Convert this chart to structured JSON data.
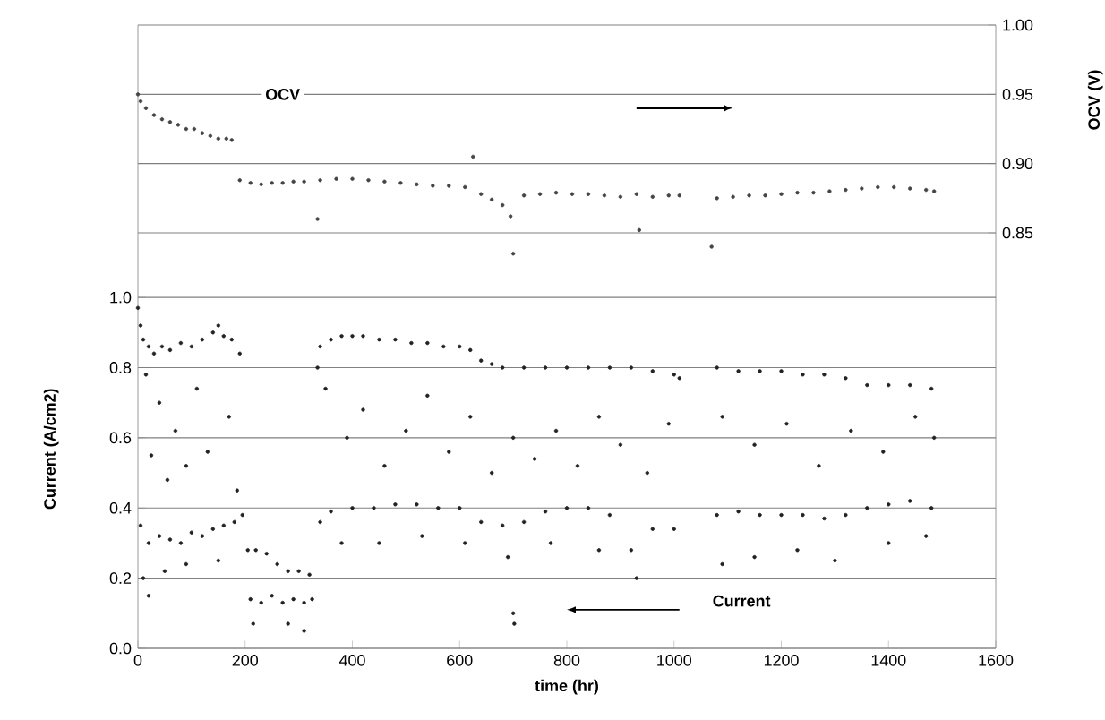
{
  "chart_data": {
    "type": "scatter",
    "xlabel": "time  (hr)",
    "ylabel": "Current (A/cm2)",
    "y2label": "OCV (V)",
    "annotations": [
      "OCV",
      "Current"
    ],
    "xlim": [
      0,
      1600
    ],
    "xticks": [
      0,
      200,
      400,
      600,
      800,
      1000,
      1200,
      1400,
      1600
    ],
    "ylim": [
      0,
      1.776
    ],
    "yticks": [
      {
        "value": 0,
        "label": "0.0"
      },
      {
        "value": 0.2,
        "label": "0.2"
      },
      {
        "value": 0.4,
        "label": "0.4"
      },
      {
        "value": 0.6,
        "label": "0.6"
      },
      {
        "value": 0.8,
        "label": "0.8"
      },
      {
        "value": 1.0,
        "label": "1.0"
      }
    ],
    "y2lim": [
      0.55,
      1.0
    ],
    "y2ticks": [
      {
        "value": 0.85,
        "label": "0.85"
      },
      {
        "value": 0.9,
        "label": "0.90"
      },
      {
        "value": 0.95,
        "label": "0.95"
      },
      {
        "value": 1.0,
        "label": "1.00"
      }
    ],
    "grid": "y",
    "series": [
      {
        "color": "#222222",
        "x": [
          0,
          5,
          10,
          20,
          30,
          45,
          60,
          80,
          100,
          120,
          140,
          150,
          160,
          175,
          190,
          15,
          40,
          70,
          90,
          110,
          130,
          170,
          185,
          25,
          55,
          5,
          20,
          40,
          60,
          80,
          100,
          120,
          140,
          160,
          180,
          195,
          10,
          50,
          90,
          150,
          20,
          205,
          220,
          240,
          260,
          280,
          300,
          320,
          210,
          230,
          250,
          270,
          290,
          310,
          325,
          215,
          280,
          310,
          335,
          340,
          360,
          380,
          400,
          420,
          450,
          480,
          510,
          540,
          570,
          600,
          620,
          640,
          660,
          680,
          350,
          390,
          420,
          460,
          500,
          540,
          580,
          620,
          660,
          700,
          740,
          780,
          820,
          860,
          900,
          950,
          990,
          340,
          360,
          400,
          440,
          480,
          520,
          560,
          600,
          640,
          680,
          700,
          702,
          720,
          760,
          800,
          840,
          880,
          920,
          930,
          960,
          1000,
          380,
          450,
          530,
          610,
          690,
          770,
          860,
          720,
          760,
          800,
          840,
          880,
          920,
          960,
          1000,
          1010,
          1080,
          1120,
          1160,
          1200,
          1240,
          1280,
          1320,
          1360,
          1400,
          1440,
          1480,
          1090,
          1150,
          1210,
          1270,
          1330,
          1390,
          1450,
          1485,
          1080,
          1120,
          1160,
          1200,
          1240,
          1280,
          1320,
          1360,
          1400,
          1440,
          1480,
          1090,
          1150,
          1230,
          1300,
          1400,
          1470
        ],
        "values": [
          0.97,
          0.92,
          0.88,
          0.86,
          0.84,
          0.86,
          0.85,
          0.87,
          0.86,
          0.88,
          0.9,
          0.92,
          0.89,
          0.88,
          0.84,
          0.78,
          0.7,
          0.62,
          0.52,
          0.74,
          0.56,
          0.66,
          0.45,
          0.55,
          0.48,
          0.35,
          0.3,
          0.32,
          0.31,
          0.3,
          0.33,
          0.32,
          0.34,
          0.35,
          0.36,
          0.38,
          0.2,
          0.22,
          0.24,
          0.25,
          0.15,
          0.28,
          0.28,
          0.27,
          0.24,
          0.22,
          0.22,
          0.21,
          0.14,
          0.13,
          0.15,
          0.13,
          0.14,
          0.13,
          0.14,
          0.07,
          0.07,
          0.05,
          0.8,
          0.86,
          0.88,
          0.89,
          0.89,
          0.89,
          0.88,
          0.88,
          0.87,
          0.87,
          0.86,
          0.86,
          0.85,
          0.82,
          0.81,
          0.8,
          0.74,
          0.6,
          0.68,
          0.52,
          0.62,
          0.72,
          0.56,
          0.66,
          0.5,
          0.6,
          0.54,
          0.62,
          0.52,
          0.66,
          0.58,
          0.5,
          0.64,
          0.36,
          0.39,
          0.4,
          0.4,
          0.41,
          0.41,
          0.4,
          0.4,
          0.36,
          0.35,
          0.1,
          0.07,
          0.36,
          0.39,
          0.4,
          0.4,
          0.38,
          0.28,
          0.2,
          0.34,
          0.34,
          0.3,
          0.3,
          0.32,
          0.3,
          0.26,
          0.3,
          0.28,
          0.8,
          0.8,
          0.8,
          0.8,
          0.8,
          0.8,
          0.79,
          0.78,
          0.77,
          0.8,
          0.79,
          0.79,
          0.79,
          0.78,
          0.78,
          0.77,
          0.75,
          0.75,
          0.75,
          0.74,
          0.66,
          0.58,
          0.64,
          0.52,
          0.62,
          0.56,
          0.66,
          0.6,
          0.38,
          0.39,
          0.38,
          0.38,
          0.38,
          0.37,
          0.38,
          0.4,
          0.41,
          0.42,
          0.4,
          0.24,
          0.26,
          0.28,
          0.25,
          0.3,
          0.32
        ]
      },
      {
        "color": "#444444",
        "axis": "y2",
        "x": [
          0,
          5,
          15,
          30,
          45,
          60,
          75,
          90,
          105,
          120,
          135,
          150,
          165,
          175,
          190,
          210,
          230,
          250,
          270,
          290,
          310,
          335,
          340,
          370,
          400,
          430,
          460,
          490,
          520,
          550,
          580,
          610,
          625,
          640,
          660,
          680,
          695,
          700,
          720,
          750,
          780,
          810,
          840,
          870,
          900,
          930,
          935,
          960,
          990,
          1010,
          1070,
          1080,
          1110,
          1140,
          1170,
          1200,
          1230,
          1260,
          1290,
          1320,
          1350,
          1380,
          1410,
          1440,
          1470,
          1485
        ],
        "values": [
          0.95,
          0.945,
          0.94,
          0.935,
          0.932,
          0.93,
          0.928,
          0.925,
          0.925,
          0.922,
          0.92,
          0.918,
          0.918,
          0.917,
          0.888,
          0.886,
          0.885,
          0.886,
          0.886,
          0.887,
          0.887,
          0.86,
          0.888,
          0.889,
          0.889,
          0.888,
          0.887,
          0.886,
          0.885,
          0.884,
          0.884,
          0.883,
          0.905,
          0.878,
          0.874,
          0.87,
          0.862,
          0.835,
          0.877,
          0.878,
          0.879,
          0.878,
          0.878,
          0.877,
          0.876,
          0.878,
          0.852,
          0.876,
          0.877,
          0.877,
          0.84,
          0.875,
          0.876,
          0.877,
          0.877,
          0.878,
          0.879,
          0.879,
          0.88,
          0.881,
          0.882,
          0.883,
          0.883,
          0.882,
          0.881,
          0.88
        ]
      }
    ]
  }
}
